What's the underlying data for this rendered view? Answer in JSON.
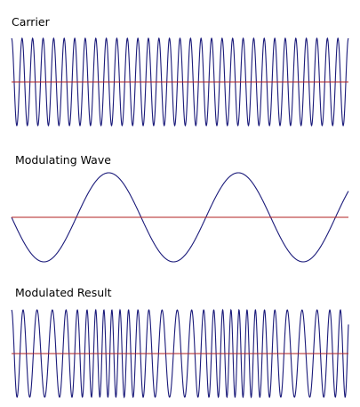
{
  "panels": [
    {
      "id": "carrier",
      "title": "Carrier",
      "cycles": 32,
      "start_phase_deg": 90,
      "frequency_modulated": false
    },
    {
      "id": "modulating",
      "title": "Modulating Wave",
      "cycles": 2.6,
      "start_phase_deg": 180,
      "frequency_modulated": false
    },
    {
      "id": "modulated",
      "title": "Modulated Result",
      "base_cycles": 32,
      "start_phase_deg": 90,
      "frequency_deviation": 0.32,
      "frequency_modulated": true
    }
  ],
  "colors": {
    "wave": "#1a1a7a",
    "axis": "#b22222",
    "text": "#000000",
    "background": "#ffffff"
  }
}
